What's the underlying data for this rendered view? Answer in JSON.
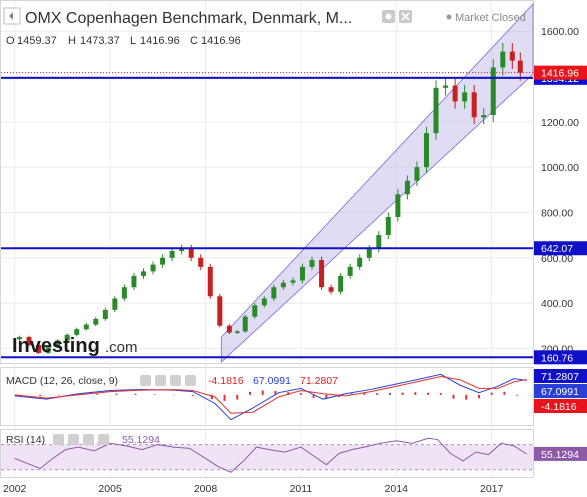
{
  "header": {
    "title": "OMX Copenhagen Benchmark, Denmark, M...",
    "status": "Market Closed",
    "ohlc": {
      "o_label": "O",
      "o": "1459.37",
      "h_label": "H",
      "h": "1473.37",
      "l_label": "L",
      "l": "1416.96",
      "c_label": "C",
      "c": "1416.96"
    }
  },
  "watermark": {
    "brand": "Investing",
    "suffix": ".com"
  },
  "colors": {
    "up": "#2a8a2a",
    "down": "#c62020",
    "hline": "#1010c8",
    "channel": "#b9b2e6",
    "macd": "#2a3fd6",
    "signal": "#e03030",
    "rsi": "#8e5aa8",
    "price_tag": "#e8141c",
    "level_tag": "#1010c8"
  },
  "chart_data": [
    {
      "type": "line",
      "name": "price",
      "x_ticks": [
        "2002",
        "2005",
        "2008",
        "2011",
        "2014",
        "2017"
      ],
      "x_tick_values": [
        2002,
        2005,
        2008,
        2011,
        2014,
        2017
      ],
      "xlim": [
        2001.6,
        2018.3
      ],
      "y_ticks": [
        "200.00",
        "400.00",
        "600.00",
        "800.00",
        "1000.00",
        "1200.00",
        "1400.00",
        "1600.00"
      ],
      "y_tick_values": [
        200,
        400,
        600,
        800,
        1000,
        1200,
        1400,
        1600
      ],
      "ylim": [
        140,
        1720
      ],
      "last_price": "1416.96",
      "horizontal_levels": [
        {
          "label": "1394.12",
          "value": 1394.12
        },
        {
          "label": "642.07",
          "value": 642.07
        },
        {
          "label": "160.76",
          "value": 160.76
        }
      ],
      "channel": {
        "x_start": 2008.5,
        "x_end": 2018.3,
        "lower_start": 140,
        "lower_end": 1410,
        "upper_start": 250,
        "upper_end": 1720
      },
      "series": [
        {
          "x": [
            2002.0,
            2002.3,
            2002.6,
            2002.9,
            2003.2,
            2003.5,
            2003.8,
            2004.1,
            2004.4,
            2004.7,
            2005.0,
            2005.3,
            2005.6,
            2005.9,
            2006.2,
            2006.5,
            2006.8,
            2007.1,
            2007.4,
            2007.7,
            2008.0,
            2008.3,
            2008.6,
            2008.9,
            2009.1,
            2009.4,
            2009.7,
            2010.0,
            2010.3,
            2010.6,
            2010.9,
            2011.2,
            2011.5,
            2011.8,
            2012.1,
            2012.4,
            2012.7,
            2013.0,
            2013.3,
            2013.6,
            2013.9,
            2014.2,
            2014.5,
            2014.8,
            2015.1,
            2015.4,
            2015.7,
            2016.0,
            2016.3,
            2016.6,
            2016.9,
            2017.2,
            2017.5,
            2017.8,
            2018.0
          ],
          "values": [
            240,
            250,
            215,
            180,
            205,
            235,
            260,
            285,
            305,
            330,
            370,
            420,
            470,
            520,
            540,
            570,
            600,
            630,
            642,
            600,
            560,
            430,
            300,
            270,
            275,
            340,
            390,
            420,
            470,
            490,
            500,
            560,
            590,
            470,
            450,
            520,
            560,
            600,
            640,
            700,
            780,
            880,
            940,
            1000,
            1150,
            1350,
            1360,
            1290,
            1330,
            1220,
            1230,
            1440,
            1510,
            1470,
            1417
          ]
        }
      ]
    },
    {
      "type": "line",
      "name": "MACD",
      "label": "MACD (12, 26, close, 9)",
      "values_text": [
        "-4.1816",
        "67.0991",
        "71.2807"
      ],
      "tags": [
        "71.2807",
        "67.0991",
        "-4.1816"
      ],
      "xlim": [
        2001.6,
        2018.3
      ],
      "ylim": [
        -135,
        115
      ],
      "series": [
        {
          "name": "MACD",
          "x": [
            2002,
            2003,
            2004,
            2005,
            2006,
            2007,
            2007.6,
            2008.3,
            2008.8,
            2009.5,
            2010.3,
            2011.0,
            2011.7,
            2012.4,
            2013.2,
            2014.0,
            2014.8,
            2015.4,
            2016.0,
            2016.6,
            2017.2,
            2017.7,
            2018.1
          ],
          "values": [
            -5,
            -20,
            5,
            20,
            25,
            22,
            15,
            -40,
            -115,
            -60,
            10,
            30,
            -20,
            5,
            25,
            50,
            75,
            95,
            45,
            10,
            40,
            75,
            67
          ]
        },
        {
          "name": "Signal",
          "x": [
            2002,
            2003,
            2004,
            2005,
            2006,
            2007,
            2007.6,
            2008.3,
            2008.8,
            2009.5,
            2010.3,
            2011.0,
            2011.7,
            2012.4,
            2013.2,
            2014.0,
            2014.8,
            2015.4,
            2016.0,
            2016.6,
            2017.2,
            2017.7,
            2018.1
          ],
          "values": [
            0,
            -15,
            0,
            15,
            22,
            24,
            20,
            -10,
            -85,
            -80,
            -10,
            20,
            5,
            -5,
            15,
            40,
            65,
            85,
            70,
            30,
            30,
            60,
            71
          ]
        }
      ],
      "histogram": {
        "x": [
          2002.2,
          2002.8,
          2003.4,
          2004.0,
          2004.6,
          2005.2,
          2005.8,
          2006.4,
          2007.0,
          2007.6,
          2008.2,
          2008.6,
          2009.0,
          2009.4,
          2009.8,
          2010.2,
          2010.6,
          2011.0,
          2011.4,
          2011.8,
          2012.2,
          2012.6,
          2013.0,
          2013.4,
          2013.8,
          2014.2,
          2014.6,
          2015.0,
          2015.4,
          2015.8,
          2016.2,
          2016.6,
          2017.0,
          2017.4,
          2017.8
        ],
        "values": [
          -4,
          -6,
          -3,
          4,
          5,
          6,
          5,
          3,
          -2,
          -5,
          -20,
          -28,
          -22,
          14,
          20,
          18,
          12,
          8,
          -14,
          -18,
          -10,
          6,
          10,
          8,
          9,
          10,
          12,
          10,
          8,
          -18,
          -22,
          -16,
          10,
          14,
          -4
        ]
      }
    },
    {
      "type": "line",
      "name": "RSI",
      "label": "RSI (14)",
      "value_text": "55.1294",
      "tag": "55.1294",
      "band": [
        30,
        70
      ],
      "xlim": [
        2001.6,
        2018.3
      ],
      "ylim": [
        20,
        90
      ],
      "series": [
        {
          "name": "RSI",
          "x": [
            2002.0,
            2002.4,
            2002.8,
            2003.2,
            2003.6,
            2004.0,
            2004.5,
            2005.0,
            2005.5,
            2006.0,
            2006.5,
            2007.0,
            2007.5,
            2008.0,
            2008.4,
            2008.8,
            2009.2,
            2009.6,
            2010.0,
            2010.5,
            2011.0,
            2011.4,
            2011.8,
            2012.2,
            2012.6,
            2013.0,
            2013.5,
            2014.0,
            2014.5,
            2015.0,
            2015.3,
            2015.7,
            2016.1,
            2016.5,
            2016.9,
            2017.3,
            2017.7,
            2018.1
          ],
          "values": [
            48,
            40,
            32,
            48,
            62,
            66,
            60,
            72,
            68,
            62,
            70,
            66,
            64,
            48,
            35,
            26,
            44,
            66,
            62,
            58,
            66,
            52,
            38,
            56,
            62,
            66,
            72,
            76,
            72,
            80,
            78,
            56,
            44,
            58,
            54,
            72,
            68,
            55
          ]
        }
      ]
    }
  ]
}
